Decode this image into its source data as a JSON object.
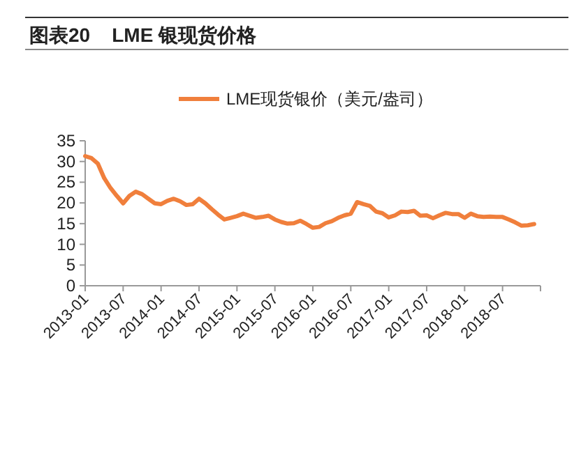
{
  "chart_data": {
    "type": "line",
    "title": "图表20    LME 银现货价格",
    "x": [
      "2013-01",
      "2013-02",
      "2013-03",
      "2013-04",
      "2013-05",
      "2013-06",
      "2013-07",
      "2013-08",
      "2013-09",
      "2013-10",
      "2013-11",
      "2013-12",
      "2014-01",
      "2014-02",
      "2014-03",
      "2014-04",
      "2014-05",
      "2014-06",
      "2014-07",
      "2014-08",
      "2014-09",
      "2014-10",
      "2014-11",
      "2014-12",
      "2015-01",
      "2015-02",
      "2015-03",
      "2015-04",
      "2015-05",
      "2015-06",
      "2015-07",
      "2015-08",
      "2015-09",
      "2015-10",
      "2015-11",
      "2015-12",
      "2016-01",
      "2016-02",
      "2016-03",
      "2016-04",
      "2016-05",
      "2016-06",
      "2016-07",
      "2016-08",
      "2016-09",
      "2016-10",
      "2016-11",
      "2016-12",
      "2017-01",
      "2017-02",
      "2017-03",
      "2017-04",
      "2017-05",
      "2017-06",
      "2017-07",
      "2017-08",
      "2017-09",
      "2017-10",
      "2017-11",
      "2017-12",
      "2018-01",
      "2018-02",
      "2018-03",
      "2018-04",
      "2018-05",
      "2018-06",
      "2018-07",
      "2018-08",
      "2018-09",
      "2018-10",
      "2018-11",
      "2018-12"
    ],
    "series": [
      {
        "name": "LME现货银价（美元/盎司）",
        "color": "#f07f3c",
        "values": [
          31.3,
          30.8,
          29.5,
          26,
          23.6,
          21.7,
          19.9,
          21.7,
          22.7,
          22.1,
          21,
          19.9,
          19.7,
          20.5,
          21,
          20.4,
          19.5,
          19.7,
          21,
          19.9,
          18.5,
          17.2,
          16,
          16.4,
          16.8,
          17.4,
          16.9,
          16.4,
          16.6,
          16.9,
          16,
          15.4,
          15,
          15.1,
          15.7,
          14.9,
          14,
          14.2,
          15.1,
          15.6,
          16.4,
          17,
          17.4,
          20.2,
          19.7,
          19.3,
          17.9,
          17.5,
          16.5,
          17,
          17.9,
          17.8,
          18.1,
          16.9,
          17,
          16.3,
          17,
          17.6,
          17.3,
          17.3,
          16.4,
          17.4,
          16.8,
          16.6,
          16.7,
          16.6,
          16.6,
          16,
          15.3,
          14.5,
          14.6,
          14.9
        ]
      }
    ],
    "xlim": [
      "2013-01",
      "2019-01"
    ],
    "xticks": [
      {
        "value": "2013-01",
        "label": "2013-01"
      },
      {
        "value": "2013-07",
        "label": "2013-07"
      },
      {
        "value": "2014-01",
        "label": "2014-01"
      },
      {
        "value": "2014-07",
        "label": "2014-07"
      },
      {
        "value": "2015-01",
        "label": "2015-01"
      },
      {
        "value": "2015-07",
        "label": "2015-07"
      },
      {
        "value": "2016-01",
        "label": "2016-01"
      },
      {
        "value": "2016-07",
        "label": "2016-07"
      },
      {
        "value": "2017-01",
        "label": "2017-01"
      },
      {
        "value": "2017-07",
        "label": "2017-07"
      },
      {
        "value": "2018-01",
        "label": "2018-01"
      },
      {
        "value": "2018-07",
        "label": "2018-07"
      },
      {
        "value": "2019-01",
        "label": null
      }
    ],
    "ylim": [
      0,
      35
    ],
    "yticks": [
      0,
      5,
      10,
      15,
      20,
      25,
      30,
      35
    ],
    "legend": "top",
    "grid": false,
    "marker": "none",
    "line_style": "solid"
  }
}
